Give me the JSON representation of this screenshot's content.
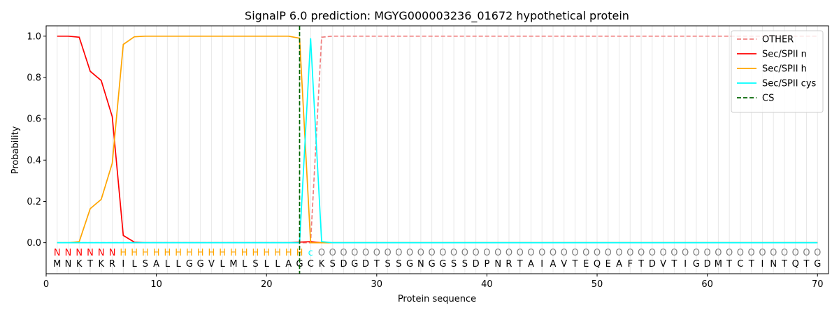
{
  "chart_data": {
    "type": "line",
    "title": "SignalP 6.0 prediction: MGYG000003236_01672 hypothetical protein",
    "x_label": "Protein sequence",
    "y_label": "Probability",
    "x": [
      1,
      2,
      3,
      4,
      5,
      6,
      7,
      8,
      9,
      10,
      11,
      12,
      13,
      14,
      15,
      16,
      17,
      18,
      19,
      20,
      21,
      22,
      23,
      24,
      25,
      26,
      27,
      28,
      29,
      30,
      31,
      32,
      33,
      34,
      35,
      36,
      37,
      38,
      39,
      40,
      41,
      42,
      43,
      44,
      45,
      46,
      47,
      48,
      49,
      50,
      51,
      52,
      53,
      54,
      55,
      56,
      57,
      58,
      59,
      60,
      61,
      62,
      63,
      64,
      65,
      66,
      67,
      68,
      69,
      70
    ],
    "residues": [
      "M",
      "N",
      "K",
      "T",
      "K",
      "R",
      "I",
      "L",
      "S",
      "A",
      "L",
      "L",
      "G",
      "G",
      "V",
      "L",
      "M",
      "L",
      "S",
      "L",
      "L",
      "A",
      "G",
      "C",
      "K",
      "S",
      "D",
      "G",
      "D",
      "T",
      "S",
      "S",
      "G",
      "N",
      "G",
      "G",
      "S",
      "S",
      "D",
      "P",
      "N",
      "R",
      "T",
      "A",
      "I",
      "A",
      "V",
      "T",
      "E",
      "Q",
      "E",
      "A",
      "F",
      "T",
      "D",
      "V",
      "T",
      "I",
      "G",
      "D",
      "M",
      "T",
      "C",
      "T",
      "I",
      "N",
      "T",
      "Q",
      "T",
      "G"
    ],
    "labels": [
      "N",
      "N",
      "N",
      "N",
      "N",
      "N",
      "H",
      "H",
      "H",
      "H",
      "H",
      "H",
      "H",
      "H",
      "H",
      "H",
      "H",
      "H",
      "H",
      "H",
      "H",
      "H",
      "H",
      "c",
      "O",
      "O",
      "O",
      "O",
      "O",
      "O",
      "O",
      "O",
      "O",
      "O",
      "O",
      "O",
      "O",
      "O",
      "O",
      "O",
      "O",
      "O",
      "O",
      "O",
      "O",
      "O",
      "O",
      "O",
      "O",
      "O",
      "O",
      "O",
      "O",
      "O",
      "O",
      "O",
      "O",
      "O",
      "O",
      "O",
      "O",
      "O",
      "O",
      "O",
      "O",
      "O",
      "O",
      "O",
      "O",
      "O"
    ],
    "label_colors": {
      "N": "red",
      "H": "orange",
      "c": "cyan",
      "O": "gray"
    },
    "series": [
      {
        "name": "OTHER",
        "color": "#f08080",
        "dashed": true,
        "values": [
          0,
          0,
          0,
          0,
          0,
          0,
          0,
          0,
          0,
          0,
          0,
          0,
          0,
          0,
          0,
          0,
          0,
          0,
          0,
          0,
          0,
          0,
          0,
          0,
          0.995,
          1,
          1,
          1,
          1,
          1,
          1,
          1,
          1,
          1,
          1,
          1,
          1,
          1,
          1,
          1,
          1,
          1,
          1,
          1,
          1,
          1,
          1,
          1,
          1,
          1,
          1,
          1,
          1,
          1,
          1,
          1,
          1,
          1,
          1,
          1,
          1,
          1,
          1,
          1,
          1,
          1,
          1,
          1,
          1,
          1
        ]
      },
      {
        "name": "Sec/SPII n",
        "color": "red",
        "dashed": false,
        "values": [
          1,
          1,
          0.995,
          0.83,
          0.785,
          0.61,
          0.035,
          0.003,
          0,
          0,
          0,
          0,
          0,
          0,
          0,
          0,
          0,
          0,
          0,
          0,
          0,
          0,
          0.003,
          0.005,
          0,
          0,
          0,
          0,
          0,
          0,
          0,
          0,
          0,
          0,
          0,
          0,
          0,
          0,
          0,
          0,
          0,
          0,
          0,
          0,
          0,
          0,
          0,
          0,
          0,
          0,
          0,
          0,
          0,
          0,
          0,
          0,
          0,
          0,
          0,
          0,
          0,
          0,
          0,
          0,
          0,
          0,
          0,
          0,
          0,
          0
        ]
      },
      {
        "name": "Sec/SPII h",
        "color": "orange",
        "dashed": false,
        "values": [
          0,
          0,
          0.005,
          0.165,
          0.21,
          0.385,
          0.96,
          0.997,
          1,
          1,
          1,
          1,
          1,
          1,
          1,
          1,
          1,
          1,
          1,
          1,
          1,
          1,
          0.99,
          0,
          0,
          0,
          0,
          0,
          0,
          0,
          0,
          0,
          0,
          0,
          0,
          0,
          0,
          0,
          0,
          0,
          0,
          0,
          0,
          0,
          0,
          0,
          0,
          0,
          0,
          0,
          0,
          0,
          0,
          0,
          0,
          0,
          0,
          0,
          0,
          0,
          0,
          0,
          0,
          0,
          0,
          0,
          0,
          0,
          0,
          0
        ]
      },
      {
        "name": "Sec/SPII cys",
        "color": "cyan",
        "dashed": false,
        "values": [
          0,
          0,
          0,
          0,
          0,
          0,
          0,
          0,
          0,
          0,
          0,
          0,
          0,
          0,
          0,
          0,
          0,
          0,
          0,
          0,
          0,
          0,
          0,
          0.99,
          0.005,
          0,
          0,
          0,
          0,
          0,
          0,
          0,
          0,
          0,
          0,
          0,
          0,
          0,
          0,
          0,
          0,
          0,
          0,
          0,
          0,
          0,
          0,
          0,
          0,
          0,
          0,
          0,
          0,
          0,
          0,
          0,
          0,
          0,
          0,
          0,
          0,
          0,
          0,
          0,
          0,
          0,
          0,
          0,
          0,
          0
        ]
      }
    ],
    "cs": {
      "name": "CS",
      "color": "darkgreen",
      "x": 23
    },
    "xlim": [
      0,
      71
    ],
    "ylim": [
      -0.15,
      1.05
    ],
    "xticks": [
      0,
      10,
      20,
      30,
      40,
      50,
      60,
      70
    ],
    "yticks": [
      {
        "value": 0,
        "label": "0.0"
      },
      {
        "value": 0.2,
        "label": "0.2"
      },
      {
        "value": 0.4,
        "label": "0.4"
      },
      {
        "value": 0.6,
        "label": "0.6"
      },
      {
        "value": 0.8,
        "label": "0.8"
      },
      {
        "value": 1,
        "label": "1.0"
      }
    ],
    "legend": "upper right"
  }
}
